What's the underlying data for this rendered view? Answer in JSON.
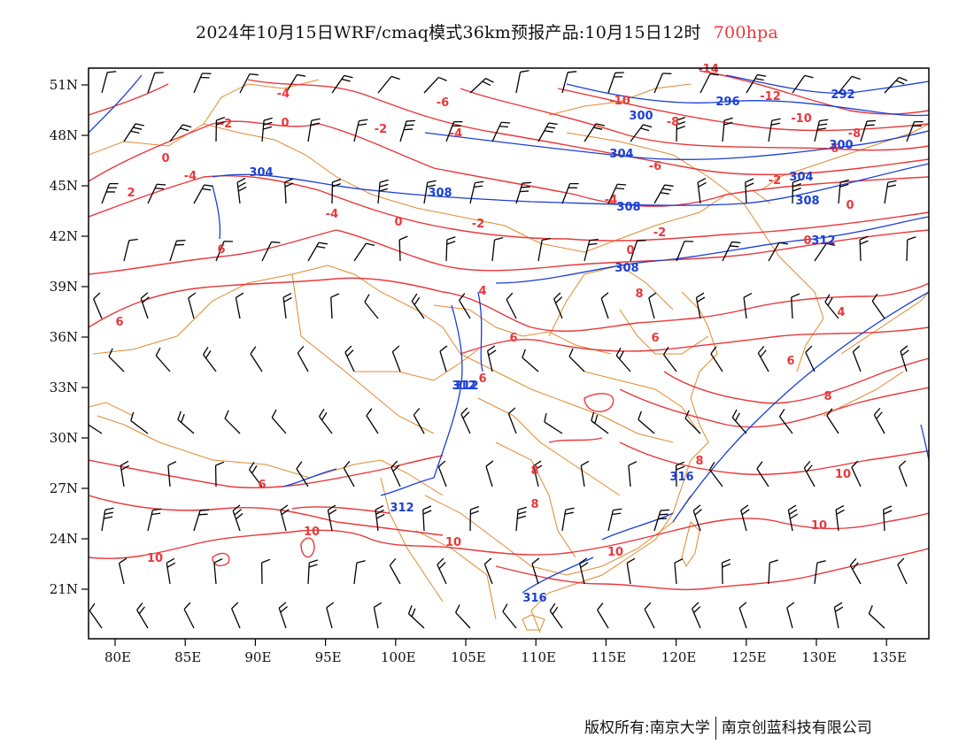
{
  "title": {
    "main": "2024年10月15日WRF/cmaq模式36km预报产品:10月15日12时",
    "level": "700hpa",
    "level_color": "#e8383b"
  },
  "axes": {
    "lat_labels": [
      "51N",
      "48N",
      "45N",
      "42N",
      "39N",
      "36N",
      "33N",
      "30N",
      "27N",
      "24N",
      "21N"
    ],
    "lon_labels": [
      "80E",
      "85E",
      "90E",
      "95E",
      "100E",
      "105E",
      "110E",
      "115E",
      "120E",
      "125E",
      "130E",
      "135E"
    ]
  },
  "colors": {
    "temperature": "#e8383b",
    "geopotential": "#1a3fd6",
    "boundaries": "#e08a2e",
    "wind_barbs": "#000000"
  },
  "temperature_labels": [
    "-14",
    "-12",
    "-10",
    "-10",
    "-8",
    "-8",
    "-6",
    "-6",
    "-6",
    "-4",
    "-4",
    "-4",
    "-4",
    "-4",
    "-2",
    "-2",
    "-2",
    "-2",
    "-2",
    "0",
    "0",
    "0",
    "0",
    "0",
    "0",
    "2",
    "4",
    "4",
    "6",
    "6",
    "6",
    "6",
    "6",
    "6",
    "6",
    "8",
    "8",
    "8",
    "8",
    "8",
    "10",
    "10",
    "10",
    "10",
    "10",
    "10"
  ],
  "height_labels": [
    "292",
    "296",
    "300",
    "300",
    "304",
    "304",
    "304",
    "308",
    "308",
    "308",
    "308",
    "312",
    "312",
    "312",
    "312",
    "316",
    "316"
  ],
  "footer": {
    "left": "版权所有:南京大学",
    "right": "南京创蓝科技有限公司"
  }
}
